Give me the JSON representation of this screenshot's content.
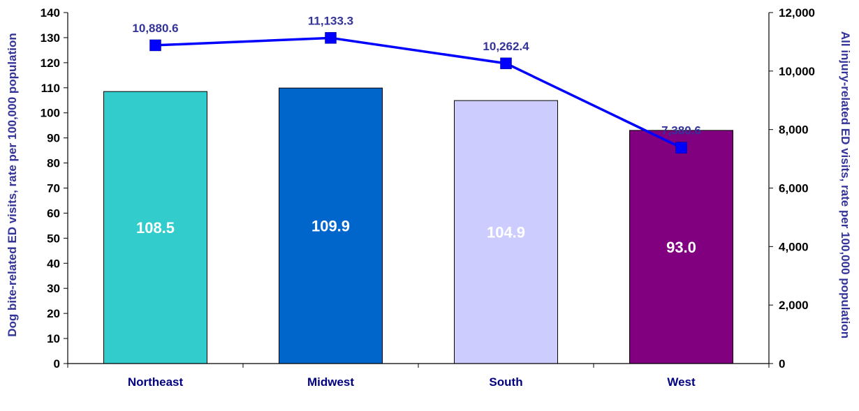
{
  "chart_data": {
    "type": "bar",
    "categories": [
      "Northeast",
      "Midwest",
      "South",
      "West"
    ],
    "bar_series": {
      "values": [
        108.5,
        109.9,
        104.9,
        93.0
      ],
      "value_labels": [
        "108.5",
        "109.9",
        "104.9",
        "93.0"
      ],
      "colors": [
        "#33CCCC",
        "#0066CC",
        "#CCCCFF",
        "#800080"
      ],
      "label_colors": [
        "#FFFFFF",
        "#FFFFFF",
        "#FFFFFF",
        "#FFFFFF"
      ],
      "axis": "left"
    },
    "line_series": {
      "values": [
        10880.6,
        11133.3,
        10262.4,
        7380.6
      ],
      "value_labels": [
        "10,880.6",
        "11,133.3",
        "10,262.4",
        "7,380.6"
      ],
      "color": "#0000FF",
      "marker": "square",
      "axis": "right"
    },
    "left_axis": {
      "label": "Dog bite-related ED visits, rate per 100,000 population",
      "ylim": [
        0,
        140
      ],
      "ticks": [
        0,
        10,
        20,
        30,
        40,
        50,
        60,
        70,
        80,
        90,
        100,
        110,
        120,
        130,
        140
      ],
      "tick_labels": [
        "0",
        "10",
        "20",
        "30",
        "40",
        "50",
        "60",
        "70",
        "80",
        "90",
        "100",
        "110",
        "120",
        "130",
        "140"
      ],
      "color": "#333399"
    },
    "right_axis": {
      "label": "All injury-related ED visits, rate per 100,000 population",
      "ylim": [
        0,
        12000
      ],
      "ticks": [
        0,
        2000,
        4000,
        6000,
        8000,
        10000,
        12000
      ],
      "tick_labels": [
        "0",
        "2,000",
        "4,000",
        "6,000",
        "8,000",
        "10,000",
        "12,000"
      ],
      "color": "#333399"
    },
    "data_label_color": "#333399",
    "category_label_color": "#000080",
    "grid": false,
    "legend": "none"
  }
}
